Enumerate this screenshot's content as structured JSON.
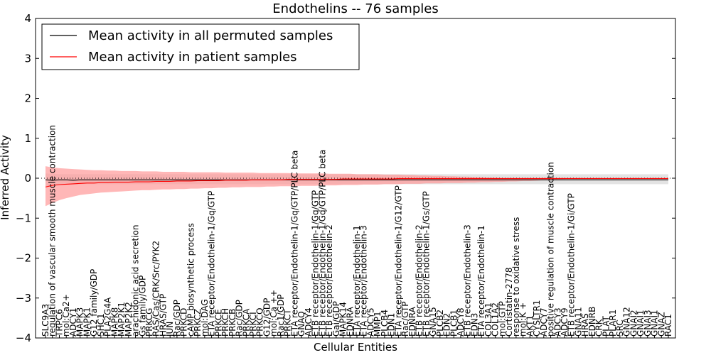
{
  "chart_data": {
    "type": "line",
    "title": "Endothelins -- 76 samples",
    "xlabel": "Cellular Entities",
    "ylabel": "Inferred Activity",
    "ylim": [
      -4,
      4
    ],
    "yticks": [
      "−4",
      "−3",
      "−2",
      "−1",
      "0",
      "1",
      "2",
      "3",
      "4"
    ],
    "grid": false,
    "legend_position": "top-left",
    "categories": [
      "SLC9A3",
      "regulation of vascular smooth muscle contraction",
      "TRPC6",
      "mol:Ca2+",
      "ADCY1",
      "MAPK3",
      "MAPK1",
      "G12 family/GDP",
      "SHC1",
      "PLA2G4A",
      "MAPK8",
      "MAP2K1",
      "MAP2K2",
      "arachidonic acid secretion",
      "Gs family/GDP",
      "PRKCG",
      "RAS/Cas/CRK/Src/PYK2",
      "HRAS/GTP",
      "JUN",
      "Rac/GDP",
      "PRKCD",
      "cAMP biosynthetic process",
      "PRKCZ",
      "mol:DAG",
      "ETA receptor/Endothelin-1/Gq/GTP",
      "PRKCE",
      "PRKCH",
      "PRKCB",
      "Rac/GDP",
      "PRKCA",
      "PRKCI",
      "PRKCQ",
      "G12/GDP",
      "mol:Ca ++",
      "Rac1/GDP",
      "PRKCT",
      "ETA receptor/Endothelin-1/Gq/GTP/PLC beta",
      "GNAQ",
      "ADCY4",
      "ETB receptor/Endothelin-1/Gq/GTP",
      "ETB receptor/Endothelin-1/Gq/GTP/PLC beta",
      "ETB receptor/Endothelin-2",
      "Gai/GDP",
      "MAPK14",
      "EDNRA",
      "ETA receptor/Endothelin-1",
      "ETA receptor/Endothelin-3",
      "ADCY5",
      "MMP1",
      "PLCB4",
      "EDN1",
      "ETA receptor/Endothelin-1/G12/GTP",
      "Rac/GTP",
      "EDNRA",
      "ETB receptor/Endothelin-2",
      "ETB receptor/Endothelin-1/Gs/GTP",
      "GNA15",
      "PLCB2",
      "EDN2",
      "PLCB1",
      "ADCY8",
      "ETB receptor/Endothelin-3",
      "EDN3",
      "ETA receptor/Endothelin-1",
      "COL3A1",
      "COL1A2",
      "mol:GTP",
      "Cortistatin-2778",
      "response to oxidative stress",
      "mol:K +",
      "AKT1",
      "CYSLTR1",
      "ADCY7",
      "positive regulation of muscle contraction",
      "ADCY3",
      "ADCY9",
      "ETB receptor/Endothelin-1/Gi/GTP",
      "GNA11",
      "HRAS",
      "EDNRB",
      "CRK",
      "PLAT",
      "PLAR1",
      "SRC",
      "GNA12",
      "GNAI2",
      "GNAI1",
      "GNAI3",
      "GNAI1",
      "GNAZ",
      "RAC1"
    ],
    "series": [
      {
        "name": "Mean activity in all permuted samples",
        "color": "#000000",
        "band_color": "#cccccc",
        "values": [
          -0.04,
          -0.05,
          -0.04,
          -0.04,
          -0.05,
          -0.04,
          -0.04,
          -0.04,
          -0.04,
          -0.04,
          -0.04,
          -0.04,
          -0.04,
          -0.04,
          -0.04,
          -0.04,
          -0.04,
          -0.04,
          -0.04,
          -0.04,
          -0.04,
          -0.04,
          -0.04,
          -0.04,
          -0.04,
          -0.04,
          -0.04,
          -0.04,
          -0.04,
          -0.04,
          -0.04,
          -0.04,
          -0.04,
          -0.04,
          -0.04,
          -0.04,
          -0.04,
          -0.04,
          -0.04,
          -0.04,
          -0.04,
          -0.04,
          -0.04,
          -0.04,
          -0.04,
          -0.04,
          -0.04,
          -0.04,
          -0.04,
          -0.04,
          -0.04,
          -0.04,
          -0.04,
          -0.04,
          -0.04,
          -0.04,
          -0.04,
          -0.04,
          -0.04,
          -0.04,
          -0.04,
          -0.04,
          -0.04,
          -0.04,
          -0.04,
          -0.04,
          -0.04,
          -0.04,
          -0.04,
          -0.04,
          -0.04,
          -0.04,
          -0.04,
          -0.04,
          -0.04,
          -0.04,
          -0.04,
          -0.04,
          -0.04,
          -0.04,
          -0.04,
          -0.04,
          -0.04,
          -0.04,
          -0.04,
          -0.04,
          -0.04,
          -0.04,
          -0.04,
          -0.04,
          -0.04
        ],
        "lower": [
          -0.2,
          -0.18,
          -0.17,
          -0.16,
          -0.16,
          -0.15,
          -0.15,
          -0.15,
          -0.15,
          -0.15,
          -0.15,
          -0.15,
          -0.15,
          -0.15,
          -0.15,
          -0.15,
          -0.15,
          -0.15,
          -0.15,
          -0.15,
          -0.15,
          -0.15,
          -0.15,
          -0.15,
          -0.15,
          -0.15,
          -0.15,
          -0.15,
          -0.15,
          -0.15,
          -0.15,
          -0.15,
          -0.15,
          -0.15,
          -0.15,
          -0.15,
          -0.15,
          -0.15,
          -0.15,
          -0.15,
          -0.15,
          -0.15,
          -0.15,
          -0.15,
          -0.15,
          -0.15,
          -0.15,
          -0.15,
          -0.15,
          -0.15,
          -0.15,
          -0.15,
          -0.15,
          -0.15,
          -0.15,
          -0.15,
          -0.15,
          -0.15,
          -0.15,
          -0.15,
          -0.15,
          -0.15,
          -0.15,
          -0.15,
          -0.15,
          -0.15,
          -0.15,
          -0.15,
          -0.15,
          -0.15,
          -0.15,
          -0.15,
          -0.15,
          -0.15,
          -0.15,
          -0.15,
          -0.15,
          -0.15,
          -0.15,
          -0.15,
          -0.15,
          -0.15,
          -0.15,
          -0.15,
          -0.15,
          -0.15,
          -0.15,
          -0.15,
          -0.15,
          -0.15,
          -0.15
        ],
        "upper": [
          0.12,
          0.11,
          0.1,
          0.1,
          0.1,
          0.1,
          0.1,
          0.1,
          0.1,
          0.1,
          0.1,
          0.1,
          0.1,
          0.1,
          0.1,
          0.1,
          0.1,
          0.1,
          0.1,
          0.1,
          0.1,
          0.1,
          0.1,
          0.1,
          0.1,
          0.1,
          0.1,
          0.1,
          0.1,
          0.1,
          0.1,
          0.1,
          0.1,
          0.1,
          0.1,
          0.1,
          0.1,
          0.1,
          0.1,
          0.1,
          0.1,
          0.1,
          0.1,
          0.1,
          0.1,
          0.1,
          0.1,
          0.1,
          0.1,
          0.1,
          0.1,
          0.1,
          0.1,
          0.1,
          0.1,
          0.1,
          0.1,
          0.1,
          0.1,
          0.1,
          0.1,
          0.1,
          0.1,
          0.1,
          0.1,
          0.1,
          0.1,
          0.1,
          0.1,
          0.1,
          0.1,
          0.1,
          0.1,
          0.1,
          0.1,
          0.1,
          0.1,
          0.1,
          0.1,
          0.1,
          0.1,
          0.1,
          0.1,
          0.1,
          0.1,
          0.1,
          0.1,
          0.1,
          0.1,
          0.1,
          0.1
        ]
      },
      {
        "name": "Mean activity in patient samples",
        "color": "#ff0000",
        "band_color": "#ff9999",
        "values": [
          -0.22,
          -0.18,
          -0.16,
          -0.15,
          -0.14,
          -0.13,
          -0.12,
          -0.12,
          -0.11,
          -0.11,
          -0.1,
          -0.1,
          -0.1,
          -0.09,
          -0.09,
          -0.09,
          -0.08,
          -0.08,
          -0.08,
          -0.07,
          -0.07,
          -0.07,
          -0.06,
          -0.06,
          -0.06,
          -0.06,
          -0.05,
          -0.05,
          -0.05,
          -0.05,
          -0.04,
          -0.04,
          -0.04,
          -0.04,
          -0.04,
          -0.03,
          -0.03,
          -0.03,
          -0.03,
          -0.03,
          -0.03,
          -0.03,
          -0.03,
          -0.02,
          -0.02,
          -0.02,
          -0.02,
          -0.02,
          -0.02,
          -0.02,
          -0.02,
          -0.01,
          -0.01,
          -0.01,
          -0.01,
          -0.01,
          -0.01,
          -0.01,
          -0.01,
          -0.01,
          -0.01,
          -0.01,
          -0.01,
          -0.01,
          -0.01,
          -0.01,
          -0.01,
          -0.01,
          -0.01,
          -0.01,
          -0.01,
          -0.01,
          -0.01,
          -0.01,
          -0.01,
          -0.01,
          -0.01,
          -0.01,
          -0.01,
          -0.01,
          -0.01,
          -0.01,
          -0.01,
          -0.01,
          -0.01,
          -0.01,
          -0.01,
          -0.01,
          -0.01,
          -0.01,
          -0.01
        ],
        "lower": [
          -0.7,
          -0.62,
          -0.55,
          -0.5,
          -0.46,
          -0.42,
          -0.4,
          -0.38,
          -0.36,
          -0.35,
          -0.34,
          -0.33,
          -0.32,
          -0.31,
          -0.3,
          -0.3,
          -0.29,
          -0.28,
          -0.28,
          -0.27,
          -0.27,
          -0.26,
          -0.26,
          -0.25,
          -0.25,
          -0.24,
          -0.24,
          -0.23,
          -0.23,
          -0.22,
          -0.22,
          -0.22,
          -0.21,
          -0.21,
          -0.2,
          -0.2,
          -0.2,
          -0.19,
          -0.19,
          -0.19,
          -0.18,
          -0.18,
          -0.18,
          -0.17,
          -0.17,
          -0.17,
          -0.16,
          -0.16,
          -0.16,
          -0.15,
          -0.15,
          -0.15,
          -0.14,
          -0.14,
          -0.14,
          -0.13,
          -0.13,
          -0.13,
          -0.12,
          -0.12,
          -0.12,
          -0.11,
          -0.11,
          -0.1,
          -0.1,
          -0.09,
          -0.09,
          -0.08,
          -0.08,
          -0.07,
          -0.07,
          -0.06,
          -0.05,
          -0.04,
          -0.03,
          -0.02,
          -0.01,
          -0.01,
          -0.01,
          -0.01,
          -0.01,
          -0.01,
          -0.01,
          -0.01,
          -0.01,
          -0.01,
          -0.01,
          -0.01,
          -0.01,
          -0.01,
          -0.01
        ],
        "upper": [
          0.3,
          0.27,
          0.25,
          0.24,
          0.23,
          0.22,
          0.21,
          0.2,
          0.2,
          0.19,
          0.19,
          0.18,
          0.18,
          0.18,
          0.17,
          0.17,
          0.17,
          0.16,
          0.16,
          0.16,
          0.16,
          0.15,
          0.15,
          0.15,
          0.15,
          0.15,
          0.14,
          0.14,
          0.14,
          0.14,
          0.14,
          0.13,
          0.13,
          0.13,
          0.13,
          0.13,
          0.12,
          0.12,
          0.12,
          0.12,
          0.12,
          0.11,
          0.11,
          0.11,
          0.11,
          0.1,
          0.1,
          0.1,
          0.1,
          0.09,
          0.09,
          0.09,
          0.08,
          0.08,
          0.07,
          0.07,
          0.06,
          0.06,
          0.05,
          0.05,
          0.04,
          0.04,
          0.03,
          0.03,
          0.02,
          0.02,
          0.01,
          0.01,
          0.01,
          0.01,
          0.01,
          0.01,
          0.01,
          0.01,
          0.01,
          0.01,
          0.01,
          0.01,
          0.01,
          0.01,
          0.01,
          0.01,
          0.01,
          0.01,
          0.01,
          0.01,
          0.01,
          0.01,
          0.01,
          0.01,
          0.01
        ]
      }
    ]
  }
}
